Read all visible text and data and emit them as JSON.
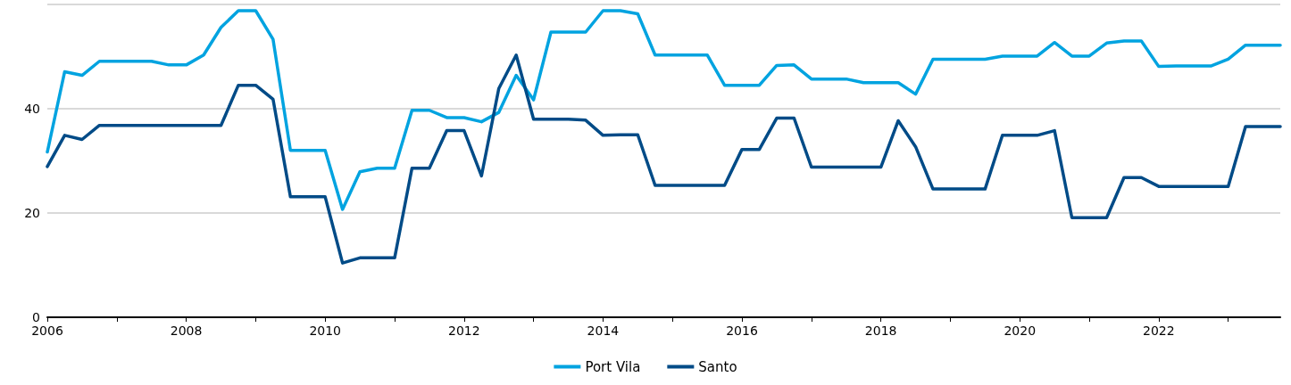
{
  "chart_data": {
    "type": "line",
    "x": [
      2006,
      2006.25,
      2006.5,
      2006.75,
      2007,
      2007.25,
      2007.5,
      2007.75,
      2008,
      2008.25,
      2008.5,
      2008.75,
      2009,
      2009.25,
      2009.5,
      2009.75,
      2010,
      2010.25,
      2010.5,
      2010.75,
      2011,
      2011.25,
      2011.5,
      2011.75,
      2012,
      2012.25,
      2012.5,
      2012.75,
      2013,
      2013.25,
      2013.5,
      2013.75,
      2014,
      2014.25,
      2014.5,
      2014.75,
      2015,
      2015.25,
      2015.5,
      2015.75,
      2016,
      2016.25,
      2016.5,
      2016.75,
      2017,
      2017.25,
      2017.5,
      2017.75,
      2018,
      2018.25,
      2018.5,
      2018.75,
      2019,
      2019.25,
      2019.5,
      2019.75,
      2020,
      2020.25,
      2020.5,
      2020.75,
      2021,
      2021.25,
      2021.5,
      2021.75,
      2022,
      2022.25,
      2022.5,
      2022.75,
      2023,
      2023.25,
      2023.5,
      2023.75
    ],
    "series": [
      {
        "name": "Port Vila",
        "color": "#00a3e0",
        "values": [
          31.7,
          47.1,
          46.4,
          49.1,
          49.1,
          49.1,
          49.1,
          48.4,
          48.4,
          50.3,
          55.6,
          58.8,
          58.8,
          53.3,
          32.0,
          32.0,
          32.0,
          20.7,
          27.9,
          28.6,
          28.6,
          39.7,
          39.7,
          38.3,
          38.3,
          37.5,
          39.3,
          46.4,
          41.7,
          54.7,
          54.7,
          54.7,
          58.8,
          58.8,
          58.2,
          50.3,
          50.3,
          50.3,
          50.3,
          44.5,
          44.5,
          44.5,
          48.3,
          48.4,
          45.7,
          45.7,
          45.7,
          45.0,
          45.0,
          45.0,
          42.8,
          49.5,
          49.5,
          49.5,
          49.5,
          50.1,
          50.1,
          50.1,
          52.7,
          50.1,
          50.1,
          52.6,
          53.0,
          53.0,
          48.1,
          48.2,
          48.2,
          48.2,
          49.5,
          52.2,
          52.2,
          52.2
        ]
      },
      {
        "name": "Santo",
        "color": "#004b87",
        "values": [
          28.9,
          34.9,
          34.1,
          36.8,
          36.8,
          36.8,
          36.8,
          36.8,
          36.8,
          36.8,
          36.8,
          44.5,
          44.5,
          41.8,
          23.1,
          23.1,
          23.1,
          10.4,
          11.4,
          11.4,
          11.4,
          28.6,
          28.6,
          35.8,
          35.8,
          27.1,
          43.9,
          50.3,
          38.0,
          38.0,
          38.0,
          37.8,
          34.9,
          35.0,
          35.0,
          25.3,
          25.3,
          25.3,
          25.3,
          25.3,
          32.2,
          32.2,
          38.2,
          38.2,
          28.8,
          28.8,
          28.8,
          28.8,
          28.8,
          37.7,
          32.7,
          24.6,
          24.6,
          24.6,
          24.6,
          34.9,
          34.9,
          34.9,
          35.8,
          19.1,
          19.1,
          19.1,
          26.8,
          26.8,
          25.1,
          25.1,
          25.1,
          25.1,
          25.1,
          36.6,
          36.6,
          36.6
        ]
      }
    ],
    "xlim": [
      2006,
      2023.75
    ],
    "xticks": [
      2006,
      {
        "value": 2007,
        "label": null
      },
      2008,
      {
        "value": 2009,
        "label": null
      },
      2010,
      {
        "value": 2011,
        "label": null
      },
      2012,
      {
        "value": 2013,
        "label": null
      },
      2014,
      {
        "value": 2015,
        "label": null
      },
      2016,
      {
        "value": 2017,
        "label": null
      },
      2018,
      {
        "value": 2019,
        "label": null
      },
      2020,
      {
        "value": 2021,
        "label": null
      },
      2022,
      {
        "value": 2023,
        "label": null
      }
    ],
    "ylim": [
      0,
      60
    ],
    "yticks": [
      0,
      20,
      40,
      {
        "value": 60,
        "label": null
      }
    ],
    "grid": "y",
    "legend": "bottom",
    "marker": "none",
    "line_style": "solid"
  }
}
